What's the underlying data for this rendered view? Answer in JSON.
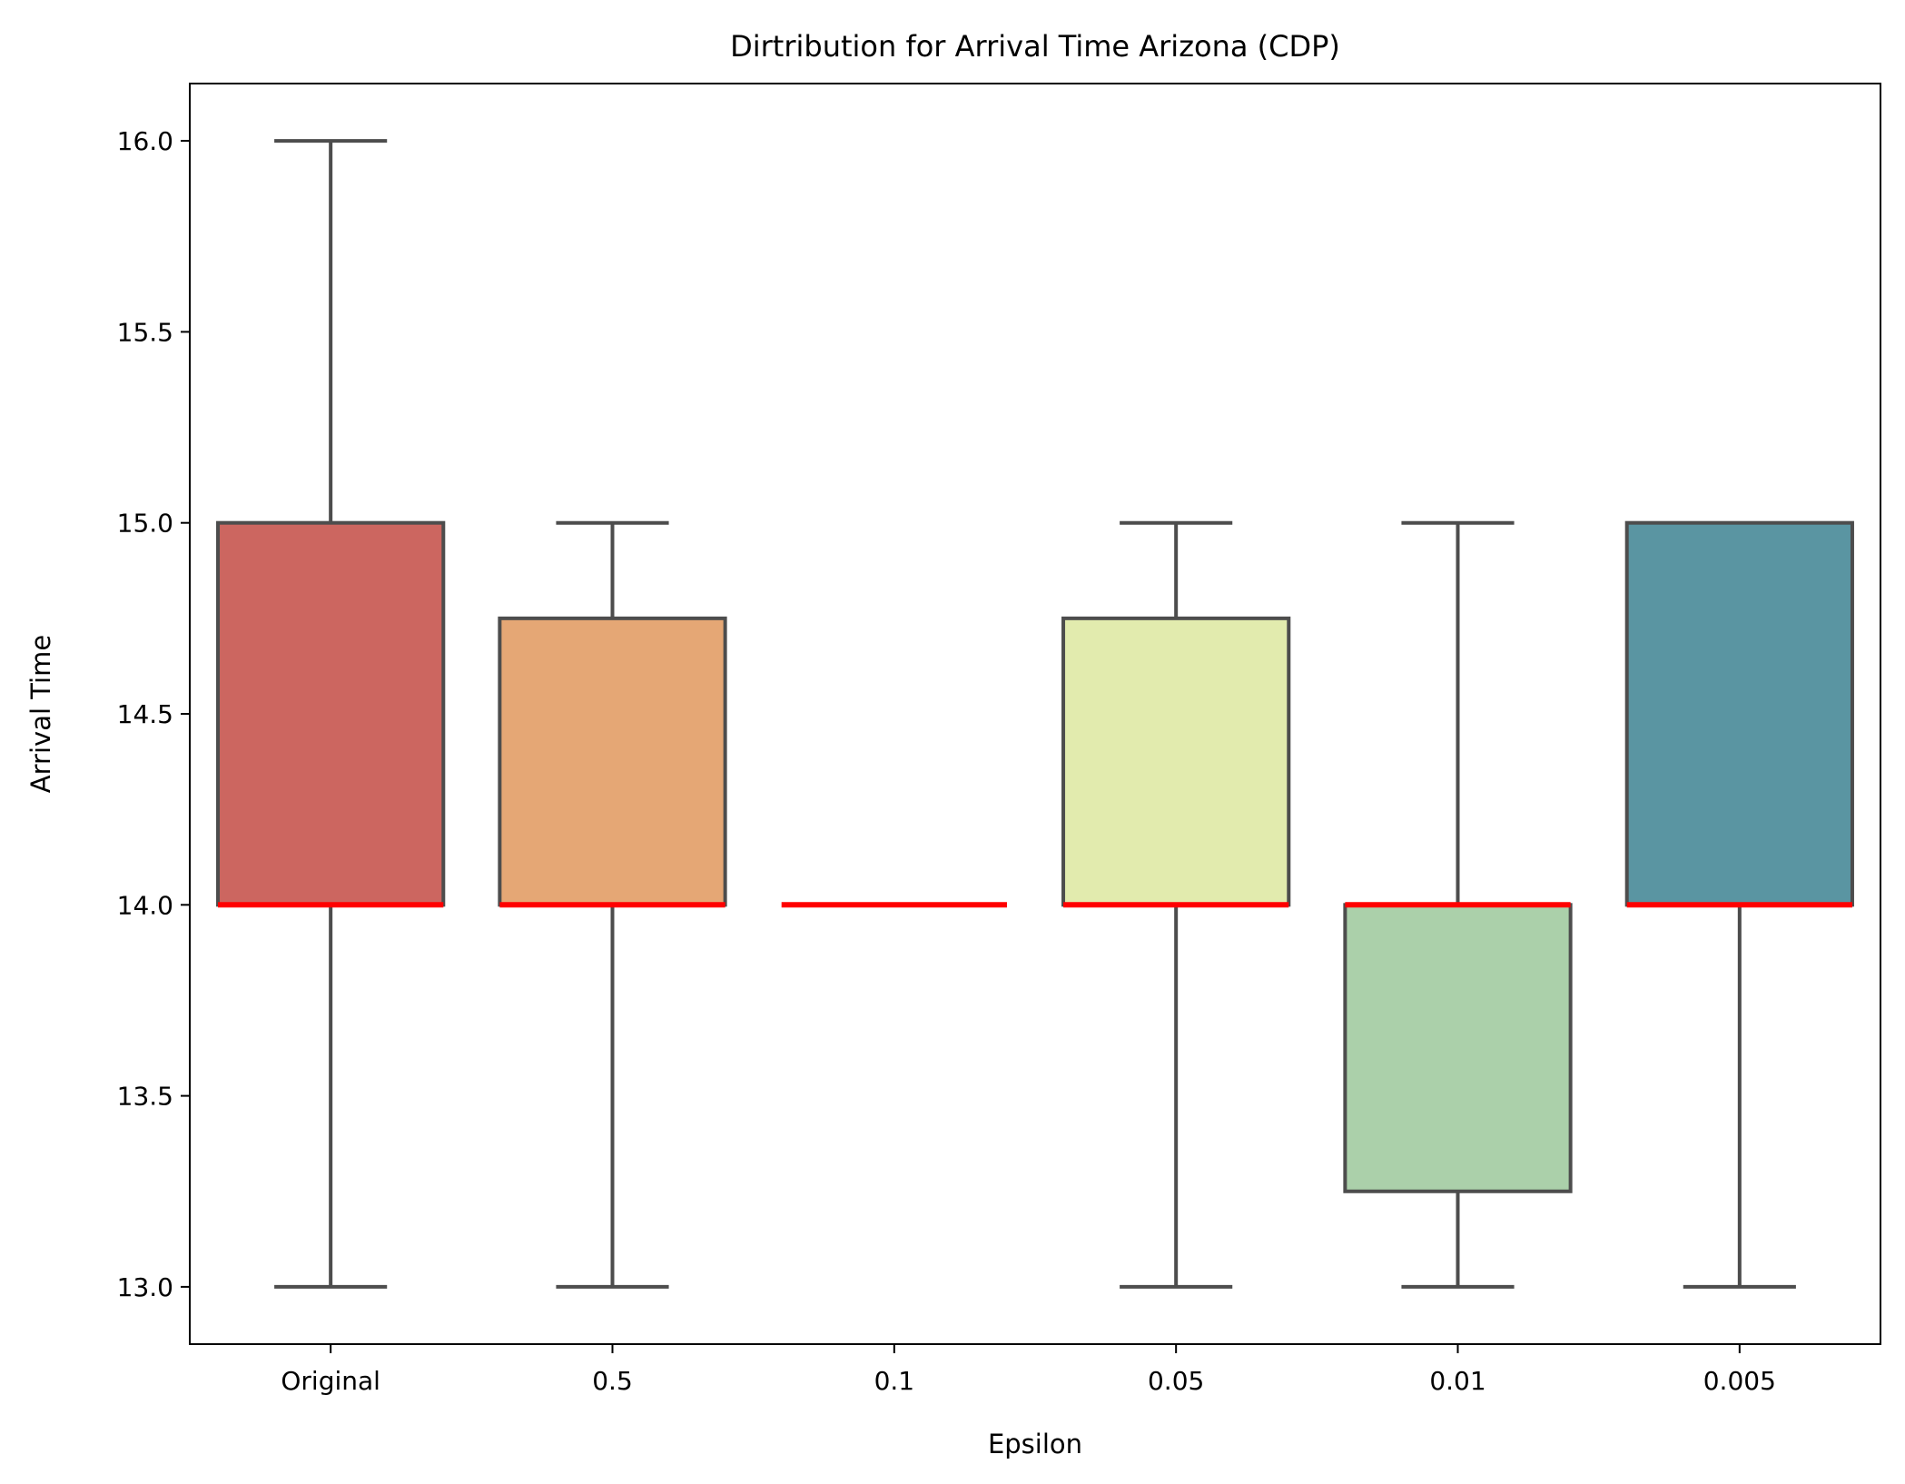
{
  "chart_data": {
    "type": "box",
    "title": "Dirtribution for Arrival Time Arizona (CDP)",
    "xlabel": "Epsilon",
    "ylabel": "Arrival Time",
    "ylim": [
      12.85,
      16.15
    ],
    "yticks": [
      13.0,
      13.5,
      14.0,
      14.5,
      15.0,
      15.5,
      16.0
    ],
    "ytick_labels": [
      "13.0",
      "13.5",
      "14.0",
      "14.5",
      "15.0",
      "15.5",
      "16.0"
    ],
    "grid": false,
    "legend": "none",
    "categories": [
      "Original",
      "0.5",
      "0.1",
      "0.05",
      "0.01",
      "0.005"
    ],
    "boxes": [
      {
        "category": "Original",
        "whisker_low": 13.0,
        "q1": 14.0,
        "median": 14.0,
        "q3": 15.0,
        "whisker_high": 16.0,
        "color": "#cc6660"
      },
      {
        "category": "0.5",
        "whisker_low": 13.0,
        "q1": 14.0,
        "median": 14.0,
        "q3": 14.75,
        "whisker_high": 15.0,
        "color": "#e5a775"
      },
      {
        "category": "0.1",
        "whisker_low": 14.0,
        "q1": 14.0,
        "median": 14.0,
        "q3": 14.0,
        "whisker_high": 14.0,
        "color": "#ffffbf"
      },
      {
        "category": "0.05",
        "whisker_low": 13.0,
        "q1": 14.0,
        "median": 14.0,
        "q3": 14.75,
        "whisker_high": 15.0,
        "color": "#e2ebae"
      },
      {
        "category": "0.01",
        "whisker_low": 13.0,
        "q1": 13.25,
        "median": 14.0,
        "q3": 14.0,
        "whisker_high": 15.0,
        "color": "#abd0aa"
      },
      {
        "category": "0.005",
        "whisker_low": 13.0,
        "q1": 14.0,
        "median": 14.0,
        "q3": 15.0,
        "whisker_high": 15.0,
        "color": "#5a95a2"
      }
    ],
    "median_color": "#ff0000",
    "line_color": "#4d4d4d"
  }
}
